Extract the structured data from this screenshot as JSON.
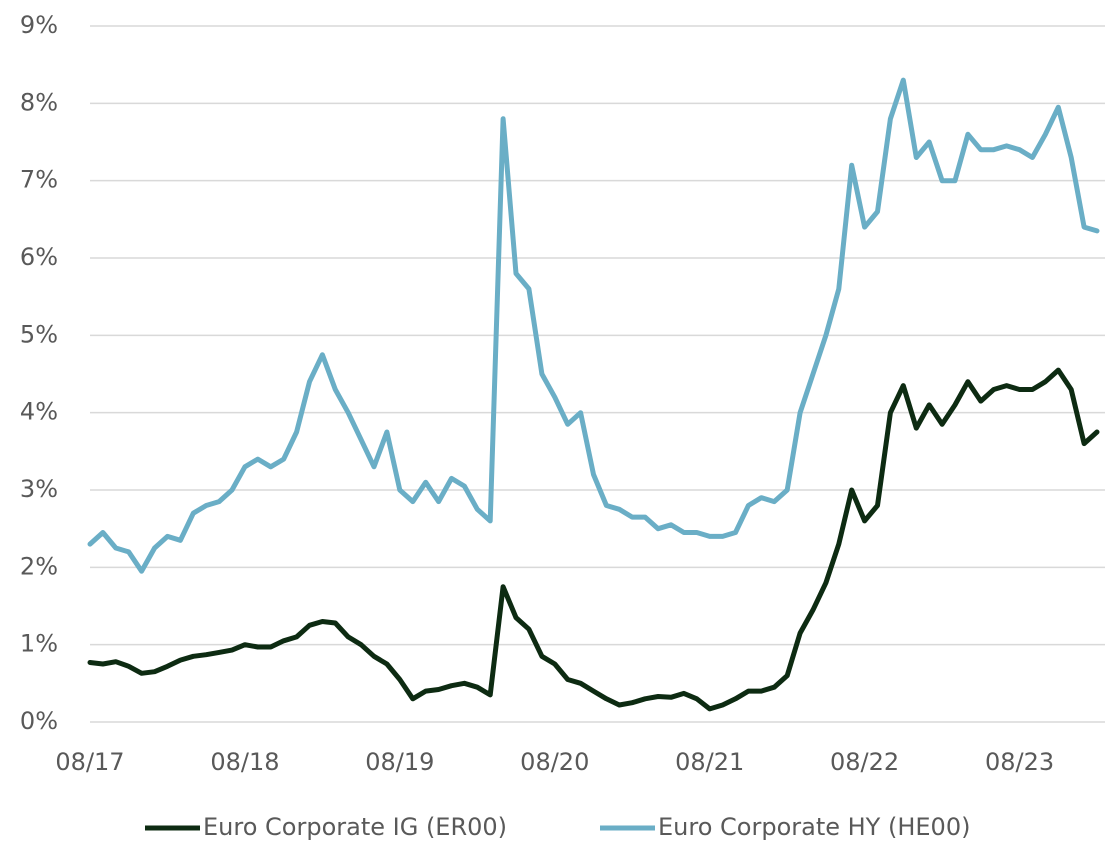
{
  "chart_data": {
    "type": "line",
    "categories": [
      "08/17",
      null,
      null,
      null,
      null,
      null,
      null,
      null,
      null,
      null,
      null,
      null,
      "08/18",
      null,
      null,
      null,
      null,
      null,
      null,
      null,
      null,
      null,
      null,
      null,
      "08/19",
      null,
      null,
      null,
      null,
      null,
      null,
      null,
      null,
      null,
      null,
      null,
      "08/20",
      null,
      null,
      null,
      null,
      null,
      null,
      null,
      null,
      null,
      null,
      null,
      "08/21",
      null,
      null,
      null,
      null,
      null,
      null,
      null,
      null,
      null,
      null,
      null,
      "08/22",
      null,
      null,
      null,
      null,
      null,
      null,
      null,
      null,
      null,
      null,
      null,
      "08/23",
      null,
      null,
      null,
      null,
      null,
      null
    ],
    "series": [
      {
        "name": "Euro Corporate IG (ER00)",
        "color": "#0d2b12",
        "values": [
          0.77,
          0.75,
          0.78,
          0.72,
          0.63,
          0.65,
          0.72,
          0.8,
          0.85,
          0.87,
          0.9,
          0.93,
          1.0,
          0.97,
          0.97,
          1.05,
          1.1,
          1.25,
          1.3,
          1.28,
          1.1,
          1.0,
          0.85,
          0.75,
          0.55,
          0.3,
          0.4,
          0.42,
          0.47,
          0.5,
          0.45,
          0.35,
          1.75,
          1.35,
          1.2,
          0.85,
          0.75,
          0.55,
          0.5,
          0.4,
          0.3,
          0.22,
          0.25,
          0.3,
          0.33,
          0.32,
          0.37,
          0.3,
          0.17,
          0.22,
          0.3,
          0.4,
          0.4,
          0.45,
          0.6,
          1.15,
          1.45,
          1.8,
          2.3,
          3.0,
          2.6,
          2.8,
          4.0,
          4.35,
          3.8,
          4.1,
          3.85,
          4.1,
          4.4,
          4.15,
          4.3,
          4.35,
          4.3,
          4.3,
          4.4,
          4.55,
          4.3,
          3.6,
          3.75
        ]
      },
      {
        "name": "Euro Corporate HY (HE00)",
        "color": "#6aaec6",
        "values": [
          2.3,
          2.45,
          2.25,
          2.2,
          1.95,
          2.25,
          2.4,
          2.35,
          2.7,
          2.8,
          2.85,
          3.0,
          3.3,
          3.4,
          3.3,
          3.4,
          3.75,
          4.4,
          4.75,
          4.3,
          4.0,
          3.65,
          3.3,
          3.75,
          3.0,
          2.85,
          3.1,
          2.85,
          3.15,
          3.05,
          2.75,
          2.6,
          7.8,
          5.8,
          5.6,
          4.5,
          4.2,
          3.85,
          4.0,
          3.2,
          2.8,
          2.75,
          2.65,
          2.65,
          2.5,
          2.55,
          2.45,
          2.45,
          2.4,
          2.4,
          2.45,
          2.8,
          2.9,
          2.85,
          3.0,
          4.0,
          4.5,
          5.0,
          5.6,
          7.2,
          6.4,
          6.6,
          7.8,
          8.3,
          7.3,
          7.5,
          7.0,
          7.0,
          7.6,
          7.4,
          7.4,
          7.45,
          7.4,
          7.3,
          7.6,
          7.95,
          7.3,
          6.4,
          6.35
        ]
      }
    ],
    "ylim": [
      0,
      9
    ],
    "yticks": [
      {
        "value": 0,
        "label": "0%"
      },
      {
        "value": 1,
        "label": "1%"
      },
      {
        "value": 2,
        "label": "2%"
      },
      {
        "value": 3,
        "label": "3%"
      },
      {
        "value": 4,
        "label": "4%"
      },
      {
        "value": 5,
        "label": "5%"
      },
      {
        "value": 6,
        "label": "6%"
      },
      {
        "value": 7,
        "label": "7%"
      },
      {
        "value": 8,
        "label": "8%"
      },
      {
        "value": 9,
        "label": "9%"
      }
    ],
    "grid": true,
    "legend": "bottom"
  }
}
